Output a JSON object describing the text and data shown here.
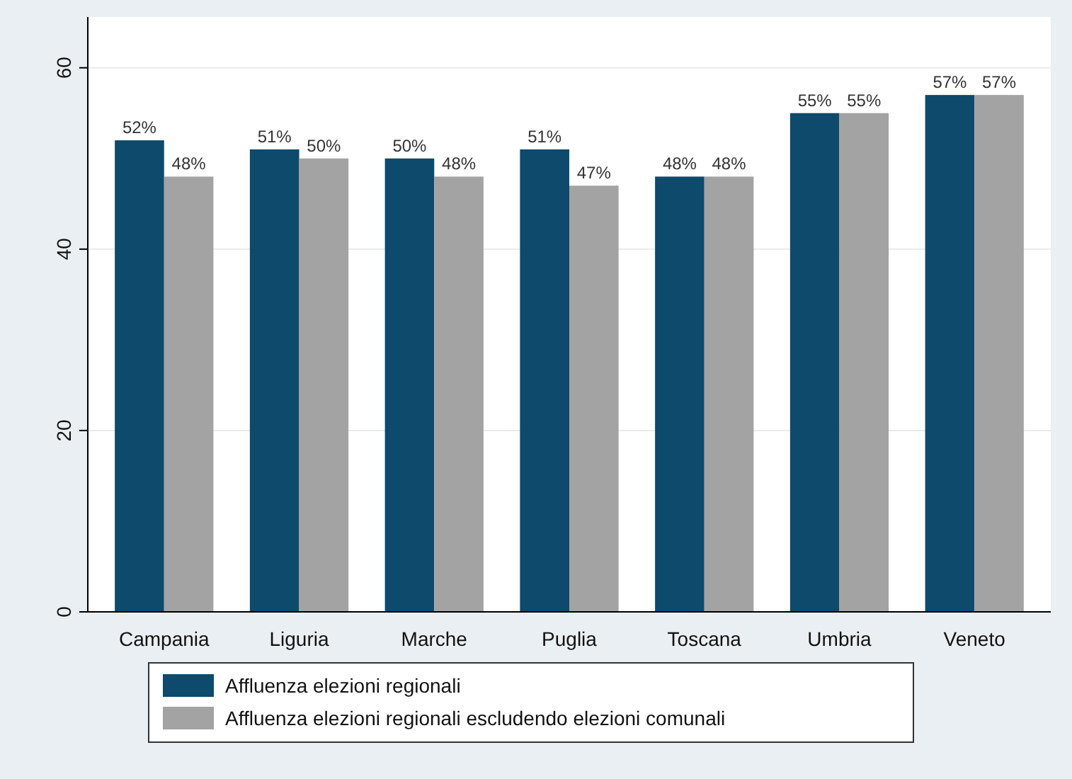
{
  "chart_data": {
    "type": "bar",
    "categories": [
      "Campania",
      "Liguria",
      "Marche",
      "Puglia",
      "Toscana",
      "Umbria",
      "Veneto"
    ],
    "series": [
      {
        "name": "Affluenza elezioni regionali",
        "color": "#0d4a6c",
        "values": [
          52,
          51,
          50,
          51,
          48,
          55,
          57
        ],
        "value_labels": [
          "52%",
          "51%",
          "50%",
          "51%",
          "48%",
          "55%",
          "57%"
        ]
      },
      {
        "name": "Affluenza elezioni regionali escludendo elezioni comunali",
        "color": "#a3a3a3",
        "values": [
          48,
          50,
          48,
          47,
          48,
          55,
          57
        ],
        "value_labels": [
          "48%",
          "50%",
          "48%",
          "47%",
          "48%",
          "55%",
          "57%"
        ]
      }
    ],
    "ylim": [
      0,
      65.6
    ],
    "yticks": [
      0,
      20,
      40,
      60
    ],
    "grid": "y",
    "legend": "bottom"
  }
}
